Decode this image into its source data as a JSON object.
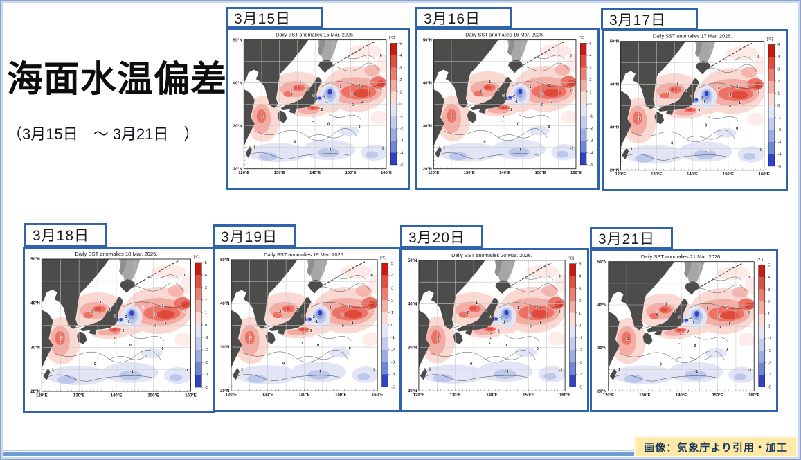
{
  "page": {
    "title": "海面水温偏差",
    "subtitle": "（3月15日　～ 3月21日　）",
    "attribution": "画像：気象庁より引用・加工",
    "colors": {
      "panel_border": "#2f64ad",
      "attribution_bg": "#ffe9a6",
      "attribution_text": "#17375d",
      "bottom_bar_blue": "#6f9bd3",
      "land": "#4c4c4a",
      "sea_ice": "#a7a7a7"
    }
  },
  "panels": [
    {
      "date_label": "3月15日",
      "map_title": "Daily SST anomalies 15 Mar. 2026."
    },
    {
      "date_label": "3月16日",
      "map_title": "Daily SST anomalies 16 Mar. 2026."
    },
    {
      "date_label": "3月17日",
      "map_title": "Daily SST anomalies 17 Mar. 2026."
    },
    {
      "date_label": "3月18日",
      "map_title": "Daily SST anomalies 18 Mar. 2026."
    },
    {
      "date_label": "3月19日",
      "map_title": "Daily SST anomalies 19 Mar. 2026."
    },
    {
      "date_label": "3月20日",
      "map_title": "Daily SST anomalies 20 Mar. 2026."
    },
    {
      "date_label": "3月21日",
      "map_title": "Daily SST anomalies 21 Mar. 2026."
    }
  ],
  "map": {
    "lat_labels": [
      "50°N",
      "40°N",
      "30°N",
      "20°N"
    ],
    "lon_labels": [
      "120°E",
      "130°E",
      "140°E",
      "150°E",
      "160°E"
    ],
    "colorbar": {
      "unit": "[°C]",
      "ticks": [
        "5",
        "4",
        "3",
        "2",
        "1",
        "0",
        "-1",
        "-2",
        "-3",
        "-4",
        "-5"
      ],
      "colors": [
        "#cf1812",
        "#e1503f",
        "#ec7d70",
        "#f4ada5",
        "#fbd9d3",
        "#e2e5f6",
        "#c3cbef",
        "#9cade4",
        "#6f87d8",
        "#3142c9"
      ]
    },
    "contour_labels": [
      "3",
      "2",
      "1",
      "0",
      "-1",
      "-2"
    ]
  },
  "chart_data": [
    {
      "type": "heatmap",
      "title": "Daily SST anomalies 15 Mar. 2026.",
      "xlabel": "longitude",
      "ylabel": "latitude",
      "x_range": [
        "120°E",
        "160°E"
      ],
      "y_range": [
        "20°N",
        "50°N"
      ],
      "scale": {
        "unit": "°C",
        "min": -5,
        "max": 5
      },
      "notes": "positive anomalies (+1 to +3) east of Japan and Sea of Japan; negative (-1,-2) along 20-27N and cold eddy near 144E,37N"
    },
    {
      "type": "heatmap",
      "title": "Daily SST anomalies 16 Mar. 2026.",
      "x_range": [
        "120°E",
        "160°E"
      ],
      "y_range": [
        "20°N",
        "50°N"
      ],
      "scale": {
        "unit": "°C",
        "min": -5,
        "max": 5
      }
    },
    {
      "type": "heatmap",
      "title": "Daily SST anomalies 17 Mar. 2026.",
      "x_range": [
        "120°E",
        "160°E"
      ],
      "y_range": [
        "20°N",
        "50°N"
      ],
      "scale": {
        "unit": "°C",
        "min": -5,
        "max": 5
      }
    },
    {
      "type": "heatmap",
      "title": "Daily SST anomalies 18 Mar. 2026.",
      "x_range": [
        "120°E",
        "160°E"
      ],
      "y_range": [
        "20°N",
        "50°N"
      ],
      "scale": {
        "unit": "°C",
        "min": -5,
        "max": 5
      }
    },
    {
      "type": "heatmap",
      "title": "Daily SST anomalies 19 Mar. 2026.",
      "x_range": [
        "120°E",
        "160°E"
      ],
      "y_range": [
        "20°N",
        "50°N"
      ],
      "scale": {
        "unit": "°C",
        "min": -5,
        "max": 5
      }
    },
    {
      "type": "heatmap",
      "title": "Daily SST anomalies 20 Mar. 2026.",
      "x_range": [
        "120°E",
        "160°E"
      ],
      "y_range": [
        "20°N",
        "50°N"
      ],
      "scale": {
        "unit": "°C",
        "min": -5,
        "max": 5
      }
    },
    {
      "type": "heatmap",
      "title": "Daily SST anomalies 21 Mar. 2026.",
      "x_range": [
        "120°E",
        "160°E"
      ],
      "y_range": [
        "20°N",
        "50°N"
      ],
      "scale": {
        "unit": "°C",
        "min": -5,
        "max": 5
      }
    }
  ]
}
